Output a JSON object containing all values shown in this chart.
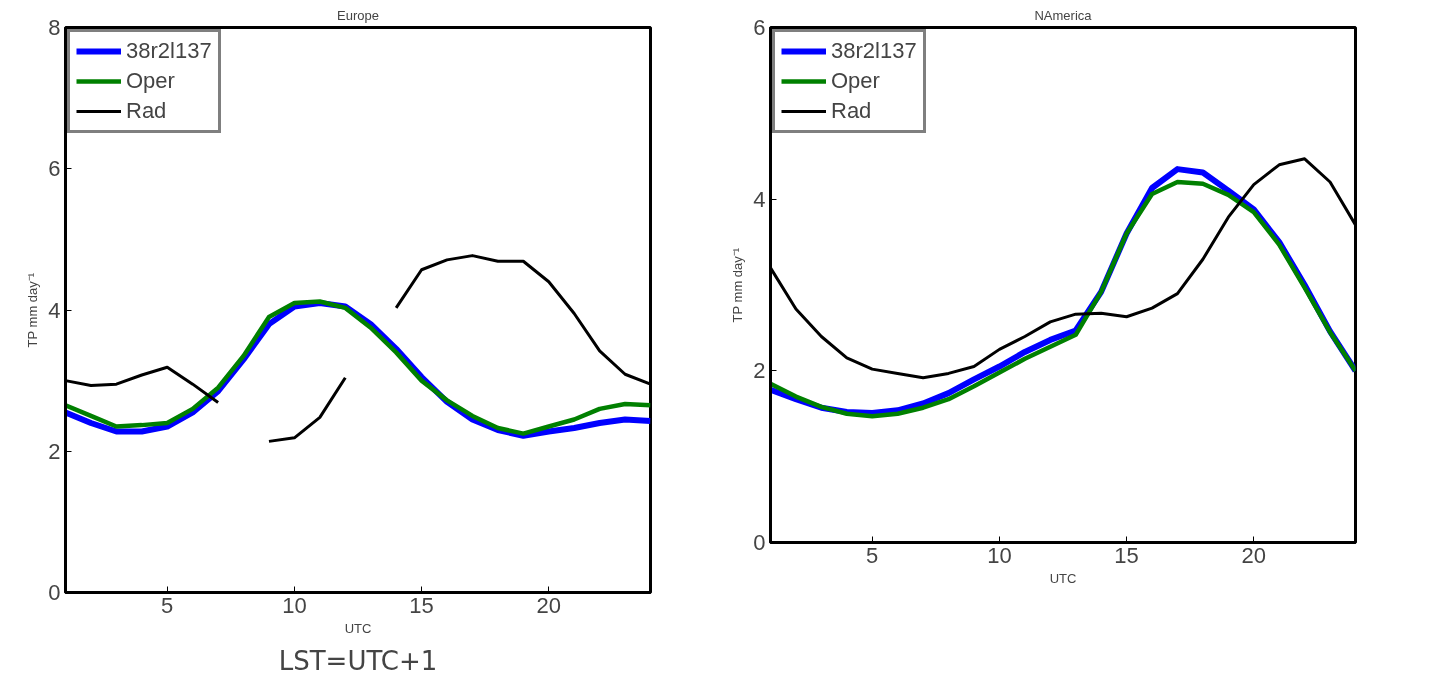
{
  "chart_data": [
    {
      "type": "line",
      "title": "Europe",
      "xlabel": "UTC",
      "ylabel": "TP mm day⁻¹",
      "x": [
        1,
        2,
        3,
        4,
        5,
        6,
        7,
        8,
        9,
        10,
        11,
        12,
        13,
        14,
        15,
        16,
        17,
        18,
        19,
        20,
        21,
        22,
        23,
        24
      ],
      "xlim": [
        1,
        24
      ],
      "xticks": [
        5,
        10,
        15,
        20
      ],
      "ylim": [
        0,
        8
      ],
      "yticks": [
        0,
        2,
        4,
        6,
        8
      ],
      "grid": false,
      "legend": "top left",
      "marker": "none",
      "line_style": "solid",
      "annotations": [
        "LST=UTC+1"
      ],
      "series": [
        {
          "name": "38r2l137",
          "color": "#0000ff",
          "values": [
            2.55,
            2.4,
            2.28,
            2.28,
            2.35,
            2.55,
            2.85,
            3.3,
            3.8,
            4.05,
            4.1,
            4.05,
            3.8,
            3.45,
            3.05,
            2.7,
            2.45,
            2.3,
            2.22,
            2.28,
            2.33,
            2.4,
            2.45,
            2.43
          ]
        },
        {
          "name": "Oper",
          "color": "#008000",
          "values": [
            2.65,
            2.5,
            2.35,
            2.37,
            2.4,
            2.6,
            2.9,
            3.35,
            3.9,
            4.1,
            4.12,
            4.03,
            3.75,
            3.4,
            3.0,
            2.72,
            2.5,
            2.33,
            2.25,
            2.35,
            2.45,
            2.6,
            2.67,
            2.65
          ]
        },
        {
          "name": "Rad",
          "color": "#000000",
          "values": [
            3.0,
            2.93,
            2.95,
            3.08,
            3.19,
            2.95,
            2.69,
            null,
            2.14,
            2.19,
            2.48,
            3.04,
            null,
            4.03,
            4.57,
            4.71,
            4.77,
            4.69,
            4.69,
            4.4,
            3.95,
            3.42,
            3.09,
            2.95
          ]
        }
      ]
    },
    {
      "type": "line",
      "title": "NAmerica",
      "xlabel": "UTC",
      "ylabel": "TP mm day⁻¹",
      "x": [
        1,
        2,
        3,
        4,
        5,
        6,
        7,
        8,
        9,
        10,
        11,
        12,
        13,
        14,
        15,
        16,
        17,
        18,
        19,
        20,
        21,
        22,
        23,
        24
      ],
      "xlim": [
        1,
        24
      ],
      "xticks": [
        5,
        10,
        15,
        20
      ],
      "ylim": [
        0,
        6
      ],
      "yticks": [
        0,
        2,
        4,
        6
      ],
      "grid": false,
      "legend": "top left",
      "marker": "none",
      "line_style": "solid",
      "series": [
        {
          "name": "38r2l137",
          "color": "#0000ff",
          "values": [
            1.78,
            1.67,
            1.57,
            1.52,
            1.51,
            1.54,
            1.62,
            1.74,
            1.9,
            2.05,
            2.22,
            2.36,
            2.47,
            2.92,
            3.6,
            4.13,
            4.35,
            4.31,
            4.1,
            3.88,
            3.5,
            3.0,
            2.46,
            2.0
          ]
        },
        {
          "name": "Oper",
          "color": "#008000",
          "values": [
            1.85,
            1.7,
            1.58,
            1.5,
            1.47,
            1.5,
            1.57,
            1.67,
            1.82,
            1.98,
            2.14,
            2.28,
            2.42,
            2.92,
            3.6,
            4.06,
            4.2,
            4.18,
            4.05,
            3.85,
            3.47,
            2.97,
            2.45,
            2.0
          ]
        },
        {
          "name": "Rad",
          "color": "#000000",
          "values": [
            3.2,
            2.72,
            2.4,
            2.15,
            2.02,
            1.97,
            1.92,
            1.97,
            2.05,
            2.25,
            2.4,
            2.57,
            2.66,
            2.67,
            2.63,
            2.73,
            2.9,
            3.3,
            3.79,
            4.17,
            4.4,
            4.47,
            4.2,
            3.7
          ]
        }
      ]
    }
  ]
}
